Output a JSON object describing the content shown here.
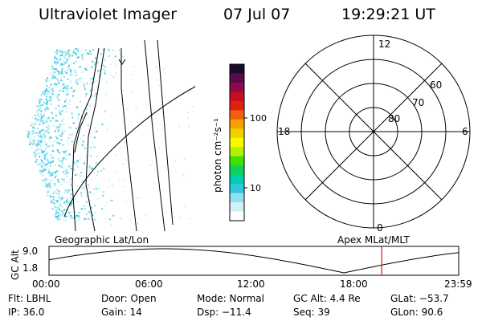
{
  "header": {
    "instrument": "Ultraviolet Imager",
    "date": "07 Jul 07",
    "time": "19:29:21 UT"
  },
  "colorbar": {
    "unit_label": "photon cm⁻²s⁻¹",
    "ticks": [
      "100",
      "10"
    ],
    "ticks_values": [
      100,
      10
    ],
    "colors": [
      "#1a0a2e",
      "#5a0a4a",
      "#8a0a4a",
      "#c21020",
      "#e02010",
      "#f06010",
      "#f8a000",
      "#f0d000",
      "#f8f800",
      "#b0f000",
      "#40e000",
      "#10d060",
      "#00d0b0",
      "#30c8e0",
      "#90e0f0",
      "#d0f0f8",
      "#ffffff"
    ]
  },
  "polar": {
    "mlt_labels": {
      "top": "12",
      "right": "6",
      "bottom": "0",
      "left": "18"
    },
    "lat_labels": [
      "60",
      "70",
      "80"
    ]
  },
  "timeline": {
    "left_label": "Geographic Lat/Lon",
    "right_label": "Apex MLat/MLT",
    "axis_label": "GC Alt",
    "y_ticks": [
      "9.0",
      "1.8"
    ],
    "x_ticks": [
      "00:00",
      "06:00",
      "12:00",
      "18:00",
      "23:59"
    ],
    "marker_time": "19:29:21",
    "marker_fraction": 0.812,
    "marker_color": "#d01818"
  },
  "info": {
    "row1": [
      "Flt: LBHL",
      "Door: Open",
      "Mode: Normal",
      "GC Alt: 4.4 Re",
      "GLat: −53.7"
    ],
    "row2": [
      "IP: 36.0",
      "Gain: 14",
      "Dsp:  −11.4",
      "Seq: 39",
      "GLon:  90.6"
    ]
  }
}
